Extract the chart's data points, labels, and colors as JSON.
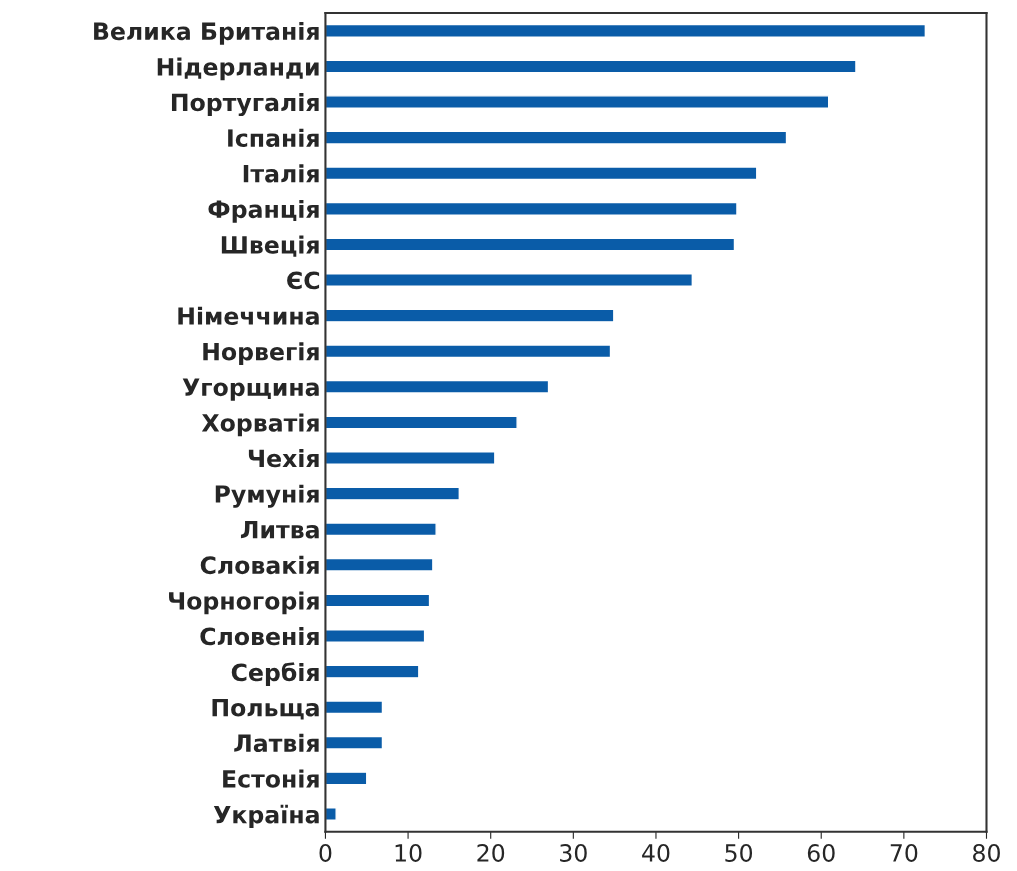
{
  "chart_data": {
    "type": "bar",
    "orientation": "horizontal",
    "categories": [
      "Велика Британія",
      "Нідерланди",
      "Португалія",
      "Іспанія",
      "Італія",
      "Франція",
      "Швеція",
      "ЄС",
      "Німеччина",
      "Норвегія",
      "Угорщина",
      "Хорватія",
      "Чехія",
      "Румунія",
      "Литва",
      "Словакія",
      "Чорногорія",
      "Словенія",
      "Сербія",
      "Польща",
      "Латвія",
      "Естонія",
      "Україна"
    ],
    "values": [
      72.6,
      64.2,
      60.9,
      55.8,
      52.2,
      49.8,
      49.5,
      44.4,
      34.9,
      34.5,
      27.0,
      23.2,
      20.5,
      16.2,
      13.4,
      13.0,
      12.6,
      12.0,
      11.3,
      6.9,
      6.9,
      5.0,
      1.3
    ],
    "color": "#0a5ca8",
    "xlim": [
      0,
      80
    ],
    "xticks": [
      0,
      10,
      20,
      30,
      40,
      50,
      60,
      70,
      80
    ],
    "grid": false
  }
}
